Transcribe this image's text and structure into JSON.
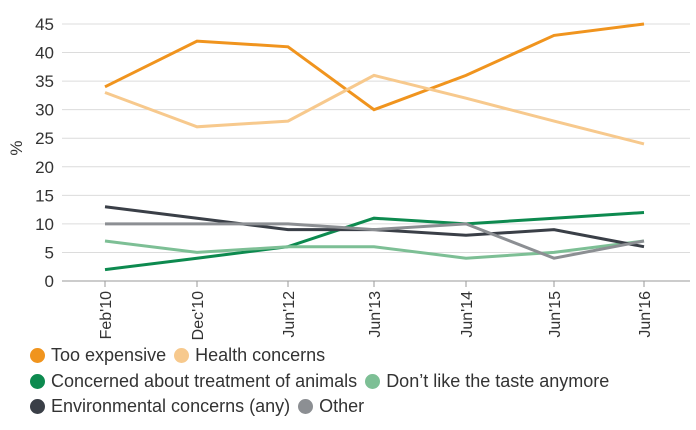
{
  "chart_data": {
    "type": "line",
    "ylabel": "%",
    "ylim": [
      0,
      45
    ],
    "yticks": [
      0,
      5,
      10,
      15,
      20,
      25,
      30,
      35,
      40,
      45
    ],
    "categories": [
      "Feb'10",
      "Dec'10",
      "Jun'12",
      "Jun'13",
      "Jun'14",
      "Jun'15",
      "Jun'16"
    ],
    "grid": true,
    "legend_position": "bottom",
    "series": [
      {
        "name": "Too expensive",
        "color": "#F0941E",
        "values": [
          34,
          42,
          41,
          30,
          36,
          43,
          45
        ]
      },
      {
        "name": "Health concerns",
        "color": "#F7C98D",
        "values": [
          33,
          27,
          28,
          36,
          32,
          28,
          24
        ]
      },
      {
        "name": "Concerned about treatment of animals",
        "color": "#0D8A4F",
        "values": [
          2,
          4,
          6,
          11,
          10,
          11,
          12
        ]
      },
      {
        "name": "Don’t like the taste anymore",
        "color": "#7DBF95",
        "values": [
          7,
          5,
          6,
          6,
          4,
          5,
          7
        ]
      },
      {
        "name": "Environmental concerns (any)",
        "color": "#3A3F47",
        "values": [
          13,
          11,
          9,
          9,
          8,
          9,
          6
        ]
      },
      {
        "name": "Other",
        "color": "#8C8F93",
        "values": [
          10,
          10,
          10,
          9,
          10,
          4,
          7
        ]
      }
    ]
  }
}
